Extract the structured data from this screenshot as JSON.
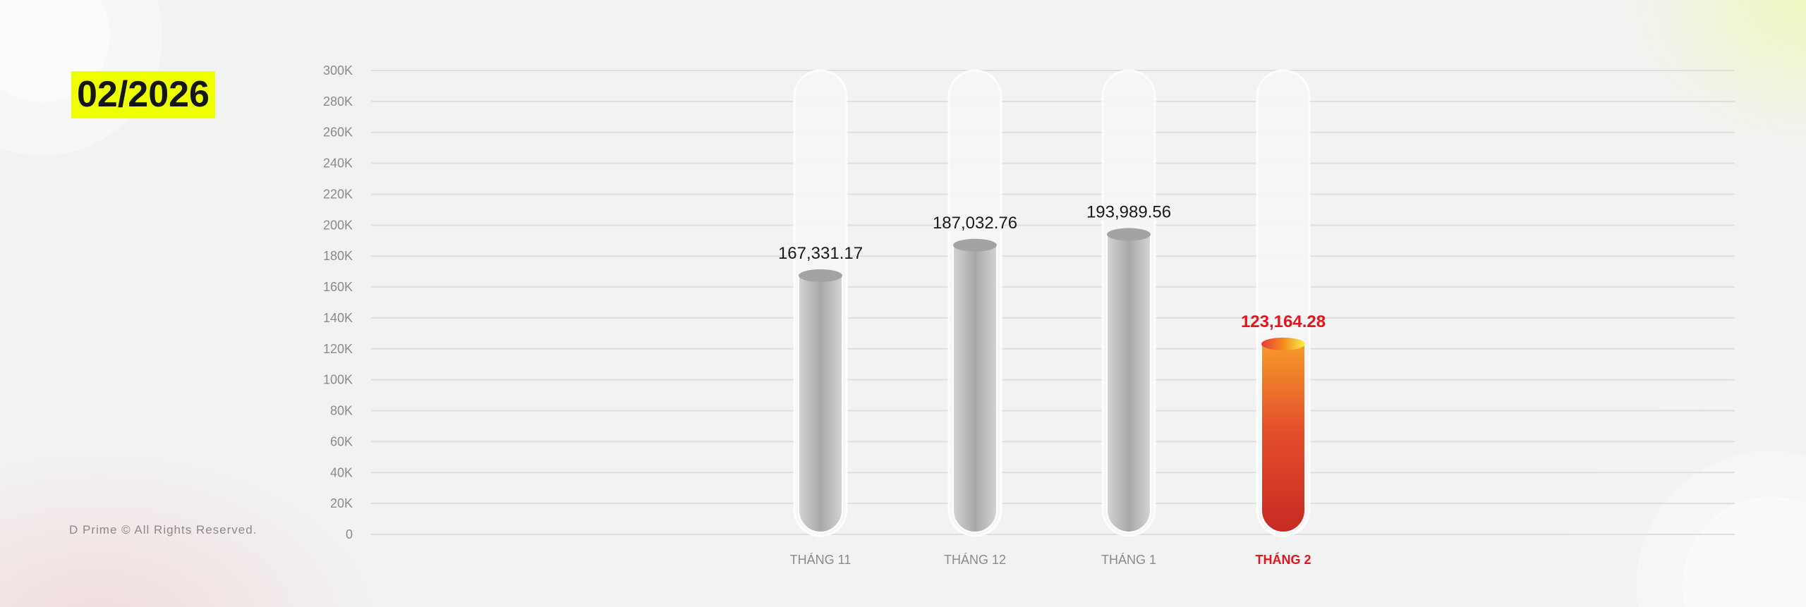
{
  "header": {
    "title": "02/2026"
  },
  "footer": {
    "text": "D Prime © All Rights Reserved."
  },
  "chart_data": {
    "type": "bar",
    "categories": [
      "THÁNG 11",
      "THÁNG 12",
      "THÁNG 1",
      "THÁNG 2"
    ],
    "values": [
      167331.17,
      187032.76,
      193989.56,
      123164.28
    ],
    "value_labels": [
      "167,331.17",
      "187,032.76",
      "193,989.56",
      "123,164.28"
    ],
    "highlight_index": 3,
    "yticks": [
      "0",
      "20K",
      "40K",
      "60K",
      "80K",
      "100K",
      "120K",
      "140K",
      "160K",
      "180K",
      "200K",
      "220K",
      "240K",
      "260K",
      "280K",
      "300K"
    ],
    "ylim": [
      0,
      300000
    ],
    "grid": true,
    "colors": {
      "bar": "#b5b5b5",
      "highlight": "#d42a22",
      "highlight_label": "#e8141c",
      "label": "#1a1a1a",
      "tick": "#8a8a8a"
    }
  }
}
